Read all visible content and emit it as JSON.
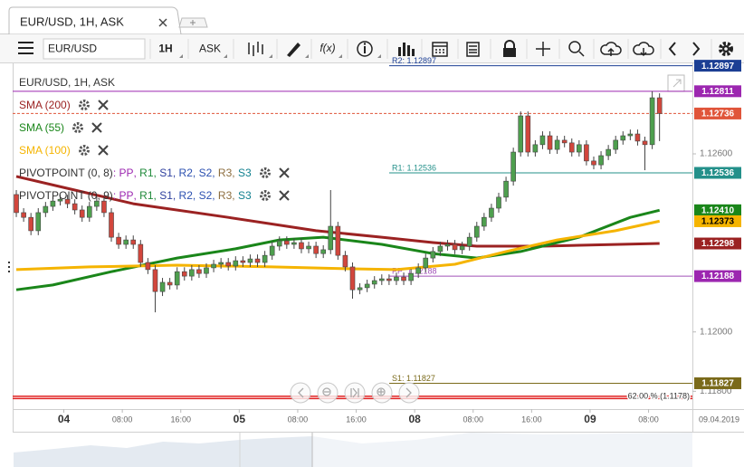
{
  "toolbar": {
    "symbol": "EUR/USD",
    "interval": "1H",
    "price_type": "ASK",
    "functions": "f(x)"
  },
  "chart_data": {
    "type": "candlestick",
    "title": "EUR/USD, 1H, ASK",
    "up_color": "#4e9f4e",
    "down_color": "#d2463c",
    "wick_color": "#444444",
    "open": [
      1.12463,
      1.12402,
      1.12386,
      1.12341,
      1.12402,
      1.12423,
      1.12441,
      1.12447,
      1.12432,
      1.12411,
      1.12386,
      1.12423,
      1.12441,
      1.12402,
      1.12319,
      1.12295,
      1.1231,
      1.12295,
      1.12234,
      1.1221,
      1.12136,
      1.12167,
      1.12158,
      1.12203,
      1.12188,
      1.1221,
      1.12197,
      1.12216,
      1.12228,
      1.12234,
      1.12222,
      1.1224,
      1.12234,
      1.12246,
      1.12234,
      1.12258,
      1.12289,
      1.12307,
      1.12295,
      1.12301,
      1.1228,
      1.12289,
      1.12264,
      1.12277,
      1.12356,
      1.12258,
      1.12219,
      1.12142,
      1.12149,
      1.12161,
      1.12173,
      1.12179,
      1.12173,
      1.12185,
      1.12173,
      1.12197,
      1.12216,
      1.12249,
      1.12271,
      1.12289,
      1.12295,
      1.12277,
      1.12289,
      1.12319,
      1.12356,
      1.12386,
      1.12417,
      1.12454,
      1.12508,
      1.12606,
      1.12728,
      1.12606,
      1.12631,
      1.12661,
      1.12615,
      1.12646,
      1.12637,
      1.12606,
      1.12631,
      1.12576,
      1.12563,
      1.12594,
      1.12615,
      1.12646,
      1.12661,
      1.12667,
      1.12643,
      1.12631,
      1.12789
    ],
    "high": [
      1.12478,
      1.12417,
      1.12401,
      1.12417,
      1.12438,
      1.12456,
      1.12462,
      1.12462,
      1.12447,
      1.12426,
      1.12438,
      1.12456,
      1.12456,
      1.12417,
      1.12334,
      1.12325,
      1.12325,
      1.1231,
      1.12249,
      1.12225,
      1.12182,
      1.12182,
      1.12218,
      1.12218,
      1.12225,
      1.12225,
      1.12231,
      1.12243,
      1.12249,
      1.12249,
      1.12255,
      1.12255,
      1.12261,
      1.12261,
      1.12273,
      1.12304,
      1.12322,
      1.12322,
      1.12316,
      1.12316,
      1.12304,
      1.12304,
      1.12292,
      1.12478,
      1.12371,
      1.12273,
      1.12234,
      1.12164,
      1.12176,
      1.12188,
      1.12194,
      1.12194,
      1.122,
      1.122,
      1.12212,
      1.12231,
      1.12264,
      1.12286,
      1.12304,
      1.1231,
      1.1231,
      1.12304,
      1.12334,
      1.12371,
      1.12401,
      1.12432,
      1.12469,
      1.12523,
      1.12621,
      1.12743,
      1.12743,
      1.12646,
      1.12676,
      1.12676,
      1.12661,
      1.12661,
      1.12652,
      1.12646,
      1.12646,
      1.12591,
      1.12609,
      1.1263,
      1.12661,
      1.12676,
      1.12682,
      1.12682,
      1.12658,
      1.12811,
      1.12804
    ],
    "low": [
      1.12387,
      1.12371,
      1.12326,
      1.12326,
      1.12387,
      1.12408,
      1.12426,
      1.12417,
      1.12396,
      1.12371,
      1.12371,
      1.12408,
      1.12387,
      1.12304,
      1.1228,
      1.1228,
      1.1228,
      1.12219,
      1.12195,
      1.12066,
      1.12121,
      1.12143,
      1.12143,
      1.12173,
      1.12173,
      1.12182,
      1.12182,
      1.12201,
      1.12213,
      1.12207,
      1.12207,
      1.12219,
      1.12219,
      1.12219,
      1.12219,
      1.12243,
      1.12274,
      1.1228,
      1.1228,
      1.12265,
      1.12265,
      1.12249,
      1.12249,
      1.12262,
      1.12243,
      1.12204,
      1.12112,
      1.12127,
      1.12134,
      1.12146,
      1.12158,
      1.12158,
      1.12158,
      1.12158,
      1.12158,
      1.12182,
      1.12201,
      1.12234,
      1.12256,
      1.12274,
      1.12262,
      1.12262,
      1.12274,
      1.12304,
      1.12341,
      1.12371,
      1.12402,
      1.12439,
      1.12493,
      1.12591,
      1.12591,
      1.12591,
      1.12616,
      1.126,
      1.126,
      1.12622,
      1.12591,
      1.12591,
      1.12561,
      1.12548,
      1.12548,
      1.12579,
      1.126,
      1.12631,
      1.12646,
      1.12628,
      1.12545,
      1.12616,
      1.12643
    ],
    "close": [
      1.12402,
      1.12386,
      1.12341,
      1.12402,
      1.12423,
      1.12441,
      1.12447,
      1.12432,
      1.12411,
      1.12386,
      1.12423,
      1.12441,
      1.12402,
      1.12319,
      1.12295,
      1.1231,
      1.12295,
      1.12234,
      1.1221,
      1.12136,
      1.12167,
      1.12158,
      1.12203,
      1.12188,
      1.1221,
      1.12197,
      1.12216,
      1.12228,
      1.12234,
      1.12222,
      1.1224,
      1.12234,
      1.12246,
      1.12234,
      1.12258,
      1.12289,
      1.12307,
      1.12295,
      1.12301,
      1.1228,
      1.12289,
      1.12264,
      1.12277,
      1.12356,
      1.12258,
      1.12219,
      1.12142,
      1.12149,
      1.12161,
      1.12173,
      1.12179,
      1.12173,
      1.12185,
      1.12173,
      1.12197,
      1.12216,
      1.12249,
      1.12271,
      1.12289,
      1.12295,
      1.12277,
      1.12289,
      1.12319,
      1.12356,
      1.12386,
      1.12417,
      1.12454,
      1.12508,
      1.12606,
      1.12728,
      1.12606,
      1.12631,
      1.12661,
      1.12615,
      1.12646,
      1.12637,
      1.12606,
      1.12631,
      1.12576,
      1.12563,
      1.12594,
      1.12615,
      1.12646,
      1.12661,
      1.12667,
      1.12643,
      1.12631,
      1.12789,
      1.12736
    ],
    "series": [
      {
        "name": "SMA (200)",
        "color": "#9b2222",
        "x": [
          0,
          8,
          16,
          29,
          41,
          50,
          57,
          63,
          72,
          88
        ],
        "values": [
          1.12524,
          1.12478,
          1.12432,
          1.12386,
          1.12341,
          1.12319,
          1.12301,
          1.12289,
          1.12289,
          1.12298
        ]
      },
      {
        "name": "SMA (55)",
        "color": "#1a861a",
        "x": [
          0,
          5,
          13,
          22,
          30,
          36,
          42,
          50,
          57,
          63,
          69,
          77,
          84,
          88
        ],
        "values": [
          1.12142,
          1.12158,
          1.12203,
          1.12249,
          1.1228,
          1.1231,
          1.12319,
          1.12295,
          1.12264,
          1.12249,
          1.12271,
          1.12319,
          1.12386,
          1.1241
        ]
      },
      {
        "name": "SMA (100)",
        "color": "#f5b400",
        "x": [
          0,
          10,
          22,
          35,
          45,
          52,
          60,
          67,
          74,
          82,
          88
        ],
        "values": [
          1.1221,
          1.12219,
          1.12225,
          1.12219,
          1.12213,
          1.1221,
          1.12228,
          1.12271,
          1.1231,
          1.12341,
          1.12373
        ]
      }
    ],
    "pivot_legend": {
      "separator": ", ",
      "prefix": ": ",
      "entries": [
        {
          "name": "PIVOTPOINT (0, 8)",
          "parts": [
            {
              "text": "PP",
              "color": "#9c27b0"
            },
            {
              "text": "R1",
              "color": "#1f8a3a"
            },
            {
              "text": "S1",
              "color": "#2d3f9e"
            },
            {
              "text": "R2",
              "color": "#2b50b0"
            },
            {
              "text": "S2",
              "color": "#2b50b0"
            },
            {
              "text": "R3",
              "color": "#8d6e3f"
            },
            {
              "text": "S3",
              "color": "#11808f"
            }
          ]
        },
        {
          "name": "PIVOTPOINT (0, 9)",
          "parts": [
            {
              "text": "PP",
              "color": "#9c27b0"
            },
            {
              "text": "R1",
              "color": "#1f8a3a"
            },
            {
              "text": "S1",
              "color": "#2d3f9e"
            },
            {
              "text": "R2",
              "color": "#2b50b0"
            },
            {
              "text": "S2",
              "color": "#2b50b0"
            },
            {
              "text": "R3",
              "color": "#8d6e3f"
            },
            {
              "text": "S3",
              "color": "#11808f"
            }
          ]
        }
      ]
    },
    "levels": [
      {
        "value": 1.12897,
        "label": "R2: 1.12897",
        "color": "#1c3f94"
      },
      {
        "value": 1.12536,
        "label": "R1: 1.12536",
        "color": "#23908a"
      },
      {
        "value": 1.12188,
        "label": "PP: 1.12188",
        "color": "#a150b8"
      },
      {
        "value": 1.11827,
        "label": "S1: 1.11827",
        "color": "#7a6a1a"
      },
      {
        "value": 1.1178,
        "label": "62.00 % (1.1178)",
        "color": "#e02020",
        "full": true
      }
    ],
    "price_tags": [
      {
        "value": 1.12897,
        "label": "1.12897",
        "color": "#1c3f94",
        "text_color": "#ffffff"
      },
      {
        "value": 1.12811,
        "label": "1.12811",
        "color": "#9c27b0",
        "text_color": "#ffffff",
        "line": "solid"
      },
      {
        "value": 1.12736,
        "label": "1.12736",
        "color": "#e0553a",
        "text_color": "#ffffff",
        "line": "dashed"
      },
      {
        "value": 1.12536,
        "label": "1.12536",
        "color": "#23908a",
        "text_color": "#ffffff"
      },
      {
        "value": 1.1241,
        "label": "1.12410",
        "color": "#1a861a",
        "text_color": "#ffffff"
      },
      {
        "value": 1.12373,
        "label": "1.12373",
        "color": "#f5b400",
        "text_color": "#000000"
      },
      {
        "value": 1.12298,
        "label": "1.12298",
        "color": "#9b2222",
        "text_color": "#ffffff"
      },
      {
        "value": 1.12188,
        "label": "1.12188",
        "color": "#9c27b0",
        "text_color": "#ffffff"
      },
      {
        "value": 1.11827,
        "label": "1.11827",
        "color": "#7a6a1a",
        "text_color": "#ffffff"
      }
    ],
    "ylim": [
      1.1174,
      1.12905
    ],
    "yticks": [
      {
        "value": 1.126,
        "label": "1.12600"
      },
      {
        "value": 1.12,
        "label": "1.12000"
      },
      {
        "value": 1.118,
        "label": "1.11800"
      }
    ],
    "xlim": [
      -0.5,
      92.5
    ],
    "xticks": [
      {
        "value": 6.5,
        "label": "04"
      },
      {
        "value": 14.5,
        "label": "08:00"
      },
      {
        "value": 22.5,
        "label": "16:00"
      },
      {
        "value": 30.5,
        "label": "05"
      },
      {
        "value": 38.5,
        "label": "08:00"
      },
      {
        "value": 46.5,
        "label": "16:00"
      },
      {
        "value": 54.5,
        "label": "08"
      },
      {
        "value": 62.5,
        "label": "08:00"
      },
      {
        "value": 70.5,
        "label": "16:00"
      },
      {
        "value": 78.5,
        "label": "09"
      },
      {
        "value": 86.5,
        "label": "08:00"
      }
    ],
    "date_label": "09.04.2019",
    "grid": false
  }
}
